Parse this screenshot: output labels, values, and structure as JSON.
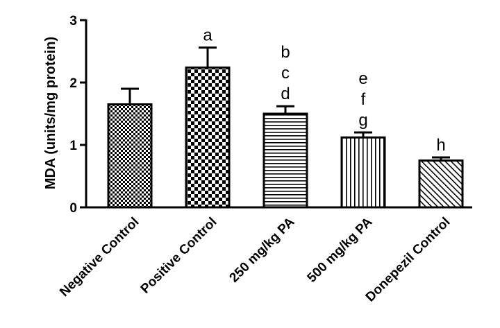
{
  "chart_data": {
    "type": "bar",
    "title": "",
    "xlabel": "",
    "ylabel": "MDA (units/mg protein)",
    "ylim": [
      0,
      3
    ],
    "yticks": [
      0,
      1,
      2,
      3
    ],
    "grid": false,
    "categories": [
      "Negative Control",
      "Positive Control",
      "250 mg/kg PA",
      "500 mg/kg PA",
      "Donepezil Control"
    ],
    "values": [
      1.65,
      2.24,
      1.5,
      1.12,
      0.75
    ],
    "errors": [
      0.25,
      0.32,
      0.12,
      0.08,
      0.05
    ],
    "annotations": [
      [],
      [
        "a"
      ],
      [
        "b",
        "c",
        "d"
      ],
      [
        "e",
        "f",
        "g"
      ],
      [
        "h"
      ]
    ],
    "patterns": [
      "small-checker",
      "large-checker",
      "horizontal-lines",
      "vertical-lines",
      "diagonal-lines"
    ]
  }
}
